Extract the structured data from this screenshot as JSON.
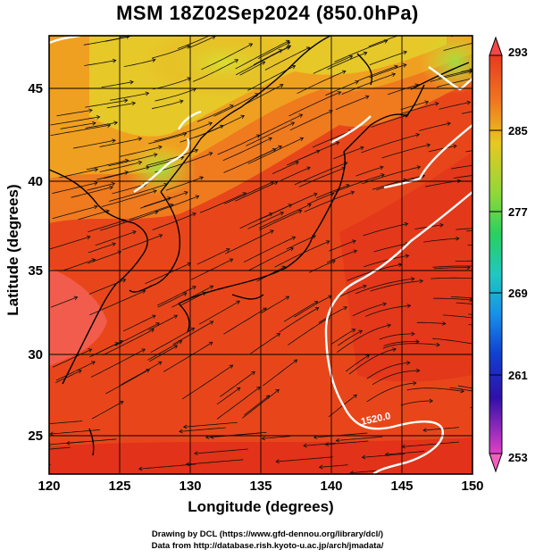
{
  "title": "MSM 18Z02Sep2024 (850.0hPa)",
  "axes": {
    "xlabel": "Longitude (degrees)",
    "ylabel": "Latitude  (degrees)",
    "xticks": [
      "120",
      "125",
      "130",
      "135",
      "140",
      "145",
      "150"
    ],
    "yticks": [
      "45",
      "40",
      "35",
      "30",
      "25"
    ],
    "xrange": [
      120,
      150
    ],
    "yrange": [
      22.4,
      47.6
    ]
  },
  "colorbar": {
    "ticks": [
      "293",
      "285",
      "277",
      "269",
      "261",
      "253"
    ],
    "min": 253,
    "max": 293
  },
  "contour_label": "1520.0",
  "credits": [
    "Drawing by DCL (https://www.gfd-dennou.org/library/dcl/)",
    "Data from http://database.rish.kyoto-u.ac.jp/arch/jmadata/"
  ],
  "colors": {
    "warm": "#e83a14",
    "hot": "#f05a48",
    "orange": "#f08a1c",
    "yellow": "#e6d228",
    "green": "#7ed43a"
  }
}
